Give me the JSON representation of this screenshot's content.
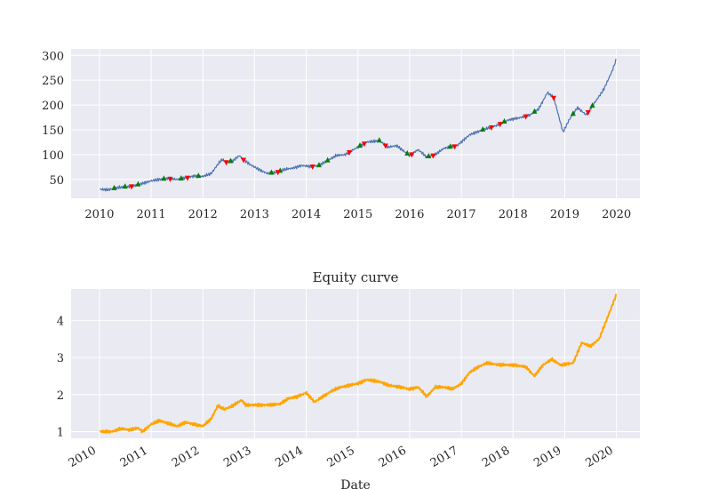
{
  "chart_data": [
    {
      "type": "line",
      "title": "",
      "xlabel": "",
      "ylabel": "",
      "x_ticks": [
        "2010",
        "2011",
        "2012",
        "2013",
        "2014",
        "2015",
        "2016",
        "2017",
        "2018",
        "2019",
        "2020"
      ],
      "y_ticks": [
        "50",
        "100",
        "150",
        "200",
        "250",
        "300"
      ],
      "xlim": [
        "2009-06-15",
        "2020-06-15"
      ],
      "ylim": [
        12,
        313
      ],
      "grid": true,
      "series": [
        {
          "color": "#4c72b0",
          "points": [
            [
              "2010-01-04",
              30
            ],
            [
              "2010-03-01",
              29
            ],
            [
              "2010-05-01",
              33
            ],
            [
              "2010-07-01",
              35
            ],
            [
              "2010-09-01",
              37
            ],
            [
              "2010-11-01",
              42
            ],
            [
              "2011-01-01",
              47
            ],
            [
              "2011-03-01",
              50
            ],
            [
              "2011-05-01",
              52
            ],
            [
              "2011-07-01",
              50
            ],
            [
              "2011-09-01",
              53
            ],
            [
              "2011-11-01",
              57
            ],
            [
              "2012-01-01",
              56
            ],
            [
              "2012-03-01",
              62
            ],
            [
              "2012-04-15",
              80
            ],
            [
              "2012-05-15",
              90
            ],
            [
              "2012-06-15",
              85
            ],
            [
              "2012-08-01",
              87
            ],
            [
              "2012-09-15",
              98
            ],
            [
              "2012-10-15",
              90
            ],
            [
              "2012-12-01",
              80
            ],
            [
              "2013-02-01",
              70
            ],
            [
              "2013-04-01",
              62
            ],
            [
              "2013-06-01",
              64
            ],
            [
              "2013-08-01",
              70
            ],
            [
              "2013-10-01",
              73
            ],
            [
              "2013-12-01",
              78
            ],
            [
              "2014-02-01",
              76
            ],
            [
              "2014-04-01",
              78
            ],
            [
              "2014-06-01",
              88
            ],
            [
              "2014-08-01",
              98
            ],
            [
              "2014-10-01",
              100
            ],
            [
              "2014-12-01",
              110
            ],
            [
              "2015-03-01",
              125
            ],
            [
              "2015-06-01",
              128
            ],
            [
              "2015-08-01",
              115
            ],
            [
              "2015-10-01",
              118
            ],
            [
              "2016-01-01",
              98
            ],
            [
              "2016-03-01",
              110
            ],
            [
              "2016-05-01",
              95
            ],
            [
              "2016-07-01",
              100
            ],
            [
              "2016-09-01",
              113
            ],
            [
              "2016-12-01",
              118
            ],
            [
              "2017-03-01",
              140
            ],
            [
              "2017-06-01",
              150
            ],
            [
              "2017-09-01",
              158
            ],
            [
              "2017-12-01",
              170
            ],
            [
              "2018-03-01",
              175
            ],
            [
              "2018-05-01",
              180
            ],
            [
              "2018-07-01",
              192
            ],
            [
              "2018-09-01",
              225
            ],
            [
              "2018-10-15",
              215
            ],
            [
              "2018-12-20",
              145
            ],
            [
              "2019-02-01",
              170
            ],
            [
              "2019-04-01",
              195
            ],
            [
              "2019-06-01",
              180
            ],
            [
              "2019-08-01",
              205
            ],
            [
              "2019-10-01",
              230
            ],
            [
              "2019-12-01",
              268
            ],
            [
              "2019-12-31",
              292
            ]
          ]
        }
      ],
      "markers": {
        "buy_color": "#008000",
        "sell_color": "#ff0000",
        "buy_dates": [
          "2010-04-15",
          "2010-07-01",
          "2010-10-01",
          "2011-04-01",
          "2011-08-01",
          "2011-12-01",
          "2012-07-15",
          "2013-05-01",
          "2013-07-01",
          "2014-04-01",
          "2014-06-01",
          "2015-01-15",
          "2015-06-01",
          "2015-12-15",
          "2016-05-15",
          "2016-10-15",
          "2017-06-01",
          "2017-11-01",
          "2018-06-01",
          "2019-03-01",
          "2019-07-15"
        ],
        "sell_dates": [
          "2010-08-15",
          "2011-05-15",
          "2011-09-15",
          "2012-06-15",
          "2012-10-15",
          "2013-06-15",
          "2014-02-15",
          "2014-11-01",
          "2015-02-15",
          "2015-07-15",
          "2016-01-15",
          "2016-06-15",
          "2016-11-15",
          "2017-08-01",
          "2017-10-01",
          "2018-04-01",
          "2018-10-15",
          "2019-06-15"
        ]
      }
    },
    {
      "type": "line",
      "title": "Equity curve",
      "xlabel": "Date",
      "ylabel": "",
      "x_ticks": [
        "2010",
        "2011",
        "2012",
        "2013",
        "2014",
        "2015",
        "2016",
        "2017",
        "2018",
        "2019",
        "2020"
      ],
      "y_ticks": [
        "1",
        "2",
        "3",
        "4"
      ],
      "xlim": [
        "2009-06-15",
        "2020-06-15"
      ],
      "ylim": [
        0.82,
        4.85
      ],
      "grid": true,
      "series": [
        {
          "color": "#ffa500",
          "points": [
            [
              "2010-01-04",
              1.0
            ],
            [
              "2010-04-01",
              1.0
            ],
            [
              "2010-06-01",
              1.08
            ],
            [
              "2010-08-01",
              1.05
            ],
            [
              "2010-10-01",
              1.1
            ],
            [
              "2010-11-01",
              1.0
            ],
            [
              "2011-01-01",
              1.2
            ],
            [
              "2011-03-01",
              1.3
            ],
            [
              "2011-05-01",
              1.22
            ],
            [
              "2011-07-01",
              1.15
            ],
            [
              "2011-09-01",
              1.25
            ],
            [
              "2011-11-01",
              1.2
            ],
            [
              "2012-01-01",
              1.15
            ],
            [
              "2012-03-01",
              1.35
            ],
            [
              "2012-04-15",
              1.7
            ],
            [
              "2012-06-01",
              1.6
            ],
            [
              "2012-08-01",
              1.7
            ],
            [
              "2012-10-01",
              1.85
            ],
            [
              "2012-11-01",
              1.72
            ],
            [
              "2013-03-01",
              1.72
            ],
            [
              "2013-05-01",
              1.72
            ],
            [
              "2013-07-01",
              1.75
            ],
            [
              "2013-09-01",
              1.9
            ],
            [
              "2013-11-01",
              1.95
            ],
            [
              "2014-01-01",
              2.05
            ],
            [
              "2014-03-01",
              1.8
            ],
            [
              "2014-05-01",
              1.95
            ],
            [
              "2014-07-01",
              2.1
            ],
            [
              "2014-09-01",
              2.2
            ],
            [
              "2014-11-01",
              2.25
            ],
            [
              "2015-01-01",
              2.3
            ],
            [
              "2015-03-01",
              2.4
            ],
            [
              "2015-06-01",
              2.35
            ],
            [
              "2015-08-01",
              2.25
            ],
            [
              "2015-10-01",
              2.22
            ],
            [
              "2016-01-01",
              2.15
            ],
            [
              "2016-03-01",
              2.2
            ],
            [
              "2016-05-01",
              1.95
            ],
            [
              "2016-07-01",
              2.2
            ],
            [
              "2016-09-01",
              2.2
            ],
            [
              "2016-11-01",
              2.15
            ],
            [
              "2017-01-01",
              2.3
            ],
            [
              "2017-03-01",
              2.6
            ],
            [
              "2017-05-01",
              2.75
            ],
            [
              "2017-07-01",
              2.85
            ],
            [
              "2017-10-01",
              2.8
            ],
            [
              "2018-01-01",
              2.8
            ],
            [
              "2018-04-01",
              2.75
            ],
            [
              "2018-06-01",
              2.5
            ],
            [
              "2018-08-01",
              2.8
            ],
            [
              "2018-10-01",
              2.95
            ],
            [
              "2018-12-01",
              2.8
            ],
            [
              "2019-03-01",
              2.85
            ],
            [
              "2019-05-01",
              3.4
            ],
            [
              "2019-07-01",
              3.3
            ],
            [
              "2019-09-01",
              3.5
            ],
            [
              "2019-11-01",
              4.1
            ],
            [
              "2020-01-01",
              4.7
            ]
          ]
        }
      ]
    }
  ]
}
